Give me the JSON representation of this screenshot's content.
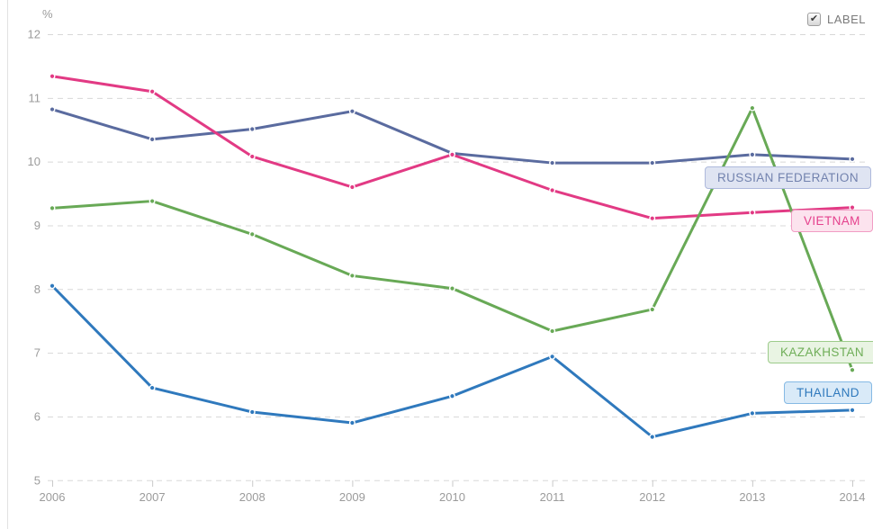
{
  "controls": {
    "label_toggle_text": "LABEL",
    "label_toggle_checked": true,
    "checkmark": "✔"
  },
  "chart_data": {
    "type": "line",
    "title": "",
    "ylabel": "%",
    "xlabel": "",
    "x": [
      "2006",
      "2007",
      "2008",
      "2009",
      "2010",
      "2011",
      "2012",
      "2013",
      "2014"
    ],
    "ylim": [
      5,
      12
    ],
    "y_ticks": [
      5,
      6,
      7,
      8,
      9,
      10,
      11,
      12
    ],
    "grid": "horizontal-dashed",
    "legend_position": "inline-label-boxes-right",
    "colors": {
      "grid": "#d8d8d8",
      "axis_text": "#9b9b9b",
      "left_border": "#e2e2e2",
      "tick": "#c9c9c9"
    },
    "series": [
      {
        "name": "RUSSIAN FEDERATION",
        "color": "#5a6b9f",
        "label_text_color": "#7282ae",
        "label_bg": "#dfe4f2",
        "label_border": "#aeb9dc",
        "values": [
          10.82,
          10.35,
          10.51,
          10.79,
          10.13,
          9.98,
          9.98,
          10.11,
          10.04
        ]
      },
      {
        "name": "VIETNAM",
        "color": "#e23a84",
        "label_text_color": "#e5418d",
        "label_bg": "#fce3ee",
        "label_border": "#f19dc4",
        "values": [
          11.34,
          11.1,
          10.08,
          9.6,
          10.11,
          9.55,
          9.11,
          9.2,
          9.28
        ]
      },
      {
        "name": "KAZAKHSTAN",
        "color": "#68a956",
        "label_text_color": "#6fae58",
        "label_bg": "#e9f4e3",
        "label_border": "#9ccb8a",
        "values": [
          9.27,
          9.38,
          8.86,
          8.21,
          8.01,
          7.34,
          7.68,
          10.84,
          6.73
        ]
      },
      {
        "name": "THAILAND",
        "color": "#2f79bd",
        "label_text_color": "#2f79bd",
        "label_bg": "#d9eaf8",
        "label_border": "#85b9e4",
        "values": [
          8.05,
          6.45,
          6.07,
          5.9,
          6.32,
          6.94,
          5.68,
          6.05,
          6.1
        ]
      }
    ]
  }
}
